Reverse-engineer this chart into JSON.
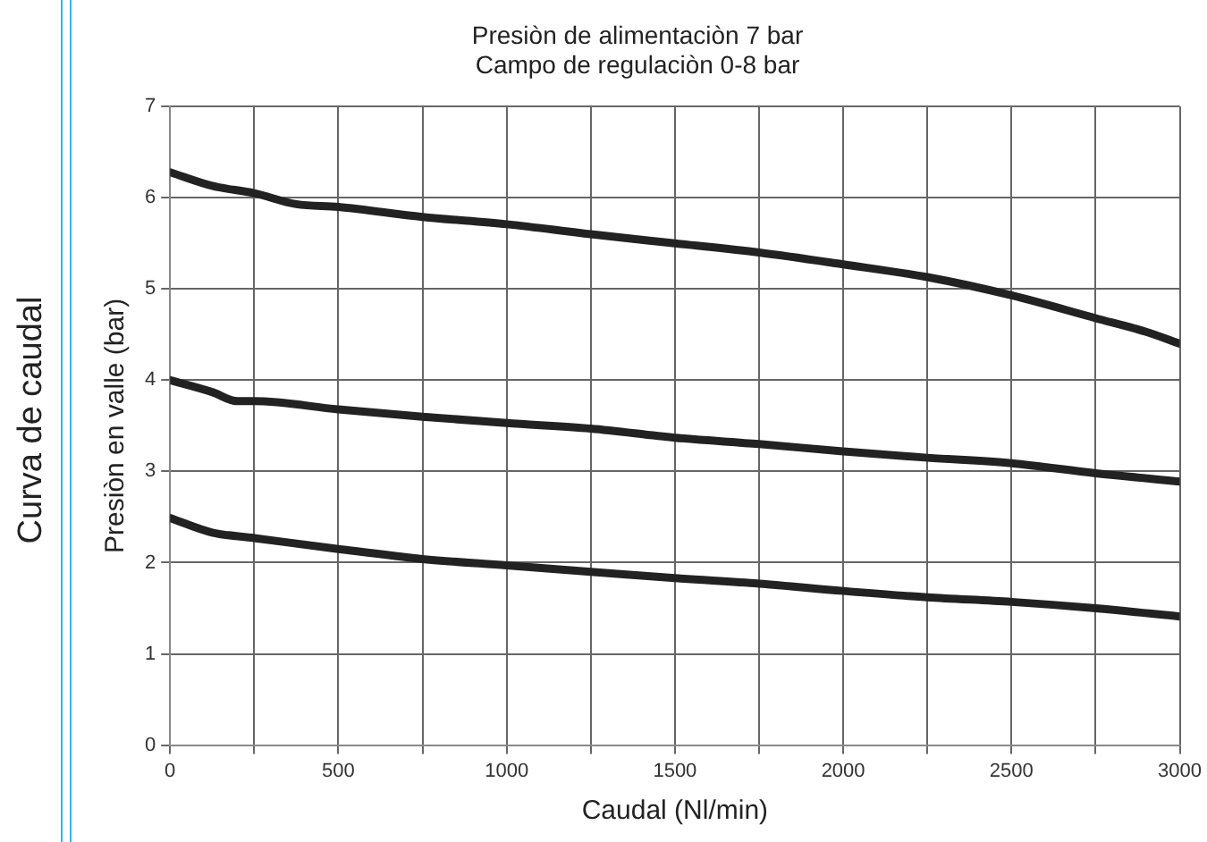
{
  "chart_data": {
    "type": "line",
    "title": "Presiòn de alimentaciòn 7 bar",
    "subtitle": "Campo de regulaciòn 0-8 bar",
    "xlabel": "Caudal (Nl/min)",
    "ylabel": "Presiòn en valle (bar)",
    "annotations": [
      "Curva de caudal"
    ],
    "series": [
      {
        "color": "#222222",
        "x": [
          0,
          125,
          250,
          375,
          500,
          750,
          1000,
          1250,
          1500,
          1750,
          2000,
          2250,
          2500,
          2750,
          2900,
          3000
        ],
        "values": [
          6.28,
          6.13,
          6.05,
          5.93,
          5.9,
          5.79,
          5.71,
          5.6,
          5.5,
          5.4,
          5.27,
          5.13,
          4.93,
          4.68,
          4.53,
          4.4
        ]
      },
      {
        "color": "#222222",
        "x": [
          0,
          125,
          200,
          250,
          500,
          750,
          1000,
          1250,
          1500,
          1750,
          2000,
          2250,
          2500,
          2750,
          3000
        ],
        "values": [
          4.0,
          3.87,
          3.77,
          3.77,
          3.68,
          3.6,
          3.53,
          3.47,
          3.37,
          3.3,
          3.22,
          3.15,
          3.09,
          2.98,
          2.89
        ]
      },
      {
        "color": "#222222",
        "x": [
          0,
          125,
          250,
          500,
          750,
          1000,
          1250,
          1500,
          1750,
          2000,
          2250,
          2500,
          2750,
          3000
        ],
        "values": [
          2.49,
          2.33,
          2.27,
          2.15,
          2.04,
          1.97,
          1.9,
          1.83,
          1.77,
          1.69,
          1.62,
          1.57,
          1.5,
          1.41
        ]
      }
    ],
    "xlim": [
      0,
      3000
    ],
    "xticks": [
      0,
      {
        "value": 250,
        "label": null
      },
      500,
      {
        "value": 750,
        "label": null
      },
      1000,
      {
        "value": 1250,
        "label": null
      },
      1500,
      {
        "value": 1750,
        "label": null
      },
      2000,
      {
        "value": 2250,
        "label": null
      },
      2500,
      {
        "value": 2750,
        "label": null
      },
      3000
    ],
    "ylim": [
      0,
      7
    ],
    "yticks": [
      0,
      1,
      2,
      3,
      4,
      5,
      6,
      7
    ],
    "grid": true,
    "legend": false,
    "marker": "none",
    "line_style": "solid"
  }
}
